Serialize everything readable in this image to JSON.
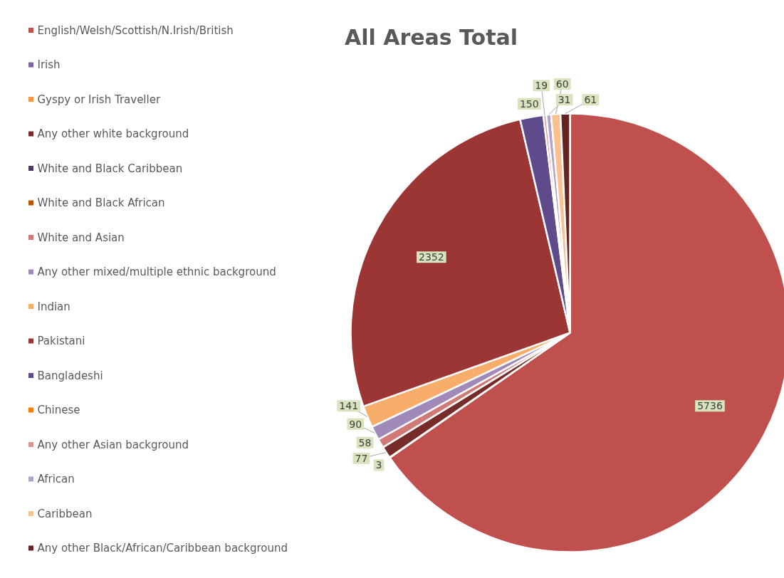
{
  "chart_data": {
    "type": "pie",
    "title": "All Areas Total",
    "categories": [
      "English/Welsh/Scottish/N.Irish/British",
      "Irish",
      "Gyspy or Irish Traveller",
      "Any other white background",
      "White and Black Caribbean",
      "White and Black African",
      "White and Asian",
      "Any other mixed/multiple ethnic background",
      "Indian",
      "Pakistani",
      "Bangladeshi",
      "Chinese",
      "Any other Asian background",
      "African",
      "Caribbean",
      "Any other Black/African/Caribbean background"
    ],
    "values": [
      5736,
      3,
      null,
      77,
      null,
      null,
      58,
      90,
      141,
      2352,
      150,
      null,
      19,
      31,
      60,
      61
    ],
    "colors": [
      "#c0504d",
      "#8064a2",
      "#f79646",
      "#772c2a",
      "#4d3b62",
      "#b65708",
      "#d07a77",
      "#9f8ab9",
      "#f9ad6b",
      "#9c3634",
      "#5f4b8b",
      "#f67c0f",
      "#d99694",
      "#b3a2c7",
      "#fac090",
      "#632523"
    ],
    "data_labels": true,
    "legend": "left"
  }
}
